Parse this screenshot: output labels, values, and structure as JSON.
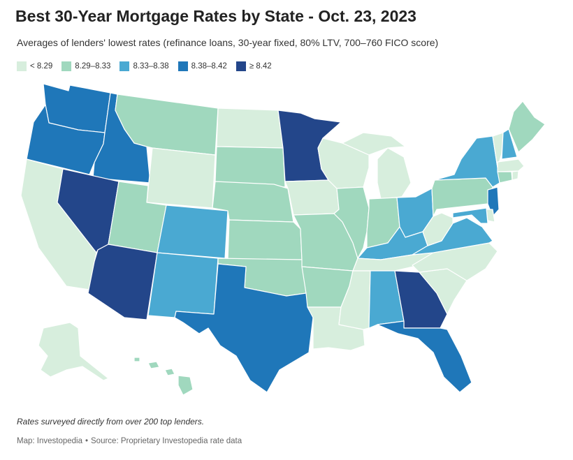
{
  "title": "Best 30-Year Mortgage Rates by State - Oct. 23, 2023",
  "subtitle": "Averages of lenders' lowest rates (refinance loans, 30-year fixed, 80% LTV, 700–760 FICO score)",
  "legend": [
    {
      "label": "< 8.29",
      "color": "#d7eedd"
    },
    {
      "label": "8.29–8.33",
      "color": "#a0d8be"
    },
    {
      "label": "8.33–8.38",
      "color": "#4aa9d2"
    },
    {
      "label": "8.38–8.42",
      "color": "#1f77b9"
    },
    {
      "label": "≥ 8.42",
      "color": "#23468a"
    }
  ],
  "map": {
    "bins": {
      "WA": 3,
      "OR": 3,
      "ID": 3,
      "CA": 0,
      "NV": 4,
      "AZ": 4,
      "MT": 1,
      "WY": 0,
      "UT": 1,
      "CO": 2,
      "NM": 2,
      "TX": 3,
      "ND": 0,
      "SD": 1,
      "NE": 1,
      "KS": 1,
      "OK": 1,
      "MN": 4,
      "IA": 0,
      "MO": 1,
      "AR": 1,
      "LA": 0,
      "WI": 0,
      "IL": 1,
      "MI": 0,
      "IN": 1,
      "OH": 2,
      "KY": 2,
      "TN": 0,
      "MS": 0,
      "AL": 2,
      "GA": 4,
      "FL": 3,
      "SC": 0,
      "NC": 0,
      "VA": 2,
      "WV": 0,
      "PA": 1,
      "NY": 2,
      "VT": 0,
      "NH": 2,
      "ME": 1,
      "MA": 0,
      "CT": 1,
      "RI": 0,
      "NJ": 3,
      "DE": 0,
      "MD": 2,
      "AK": 0,
      "HI": 1
    }
  },
  "note": "Rates surveyed directly from over 200 top lenders.",
  "credit": {
    "map": "Map: Investopedia",
    "separator": "•",
    "source": "Source: Proprietary Investopedia rate data"
  }
}
